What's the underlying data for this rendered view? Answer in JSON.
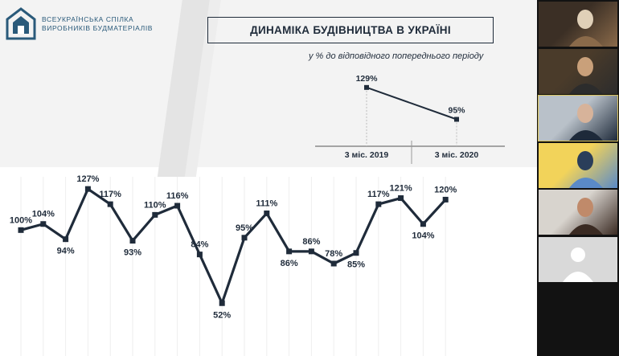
{
  "organization": {
    "line1": "ВСЕУКРАЇНСЬКА СПІЛКА",
    "line2": "ВИРОБНИКІВ БУДМАТЕРІАЛІВ"
  },
  "slide": {
    "title": "ДИНАМІКА БУДІВНИЦТВА В УКРАЇНІ",
    "subtitle": "у % до відповідного попереднього періоду"
  },
  "chart_data": [
    {
      "type": "line",
      "categories": [
        "3 міс. 2019",
        "3 міс. 2020"
      ],
      "values": [
        129,
        95
      ],
      "labels": [
        "129%",
        "95%"
      ],
      "ylim": [
        80,
        140
      ]
    },
    {
      "type": "line",
      "values": [
        100,
        104,
        94,
        127,
        117,
        93,
        110,
        116,
        84,
        52,
        95,
        111,
        86,
        86,
        78,
        85,
        117,
        121,
        104,
        120
      ],
      "labels": [
        "100%",
        "104%",
        "94%",
        "127%",
        "117%",
        "93%",
        "110%",
        "116%",
        "84%",
        "52%",
        "95%",
        "111%",
        "86%",
        "86%",
        "78%",
        "85%",
        "117%",
        "121%",
        "104%",
        "120%"
      ],
      "label_positions": [
        "above",
        "above",
        "below",
        "above",
        "above",
        "below",
        "above",
        "above",
        "above",
        "below",
        "above",
        "above",
        "below",
        "above",
        "above",
        "below",
        "above",
        "above",
        "below",
        "above"
      ],
      "ylim": [
        40,
        135
      ],
      "line_color": "#1f2b3a"
    }
  ],
  "participants": [
    {
      "name": "participant-1",
      "active": false,
      "colors": [
        "#3b2f25",
        "#8a6a4a",
        "#e0d0b8"
      ]
    },
    {
      "name": "participant-2",
      "active": false,
      "colors": [
        "#4a3b2a",
        "#2c2c2c",
        "#c9a07a"
      ]
    },
    {
      "name": "participant-3",
      "active": true,
      "colors": [
        "#b9c1c9",
        "#1e2a3a",
        "#d7b39a"
      ]
    },
    {
      "name": "participant-4",
      "active": false,
      "colors": [
        "#f2d35a",
        "#5a8ac8",
        "#2a3e5a"
      ]
    },
    {
      "name": "participant-5",
      "active": false,
      "colors": [
        "#d8d4ce",
        "#3a2a22",
        "#c08a6a"
      ]
    },
    {
      "name": "participant-6",
      "active": false,
      "colors": [
        "#d9d9d9",
        "#ffffff",
        "#ffffff"
      ]
    }
  ]
}
